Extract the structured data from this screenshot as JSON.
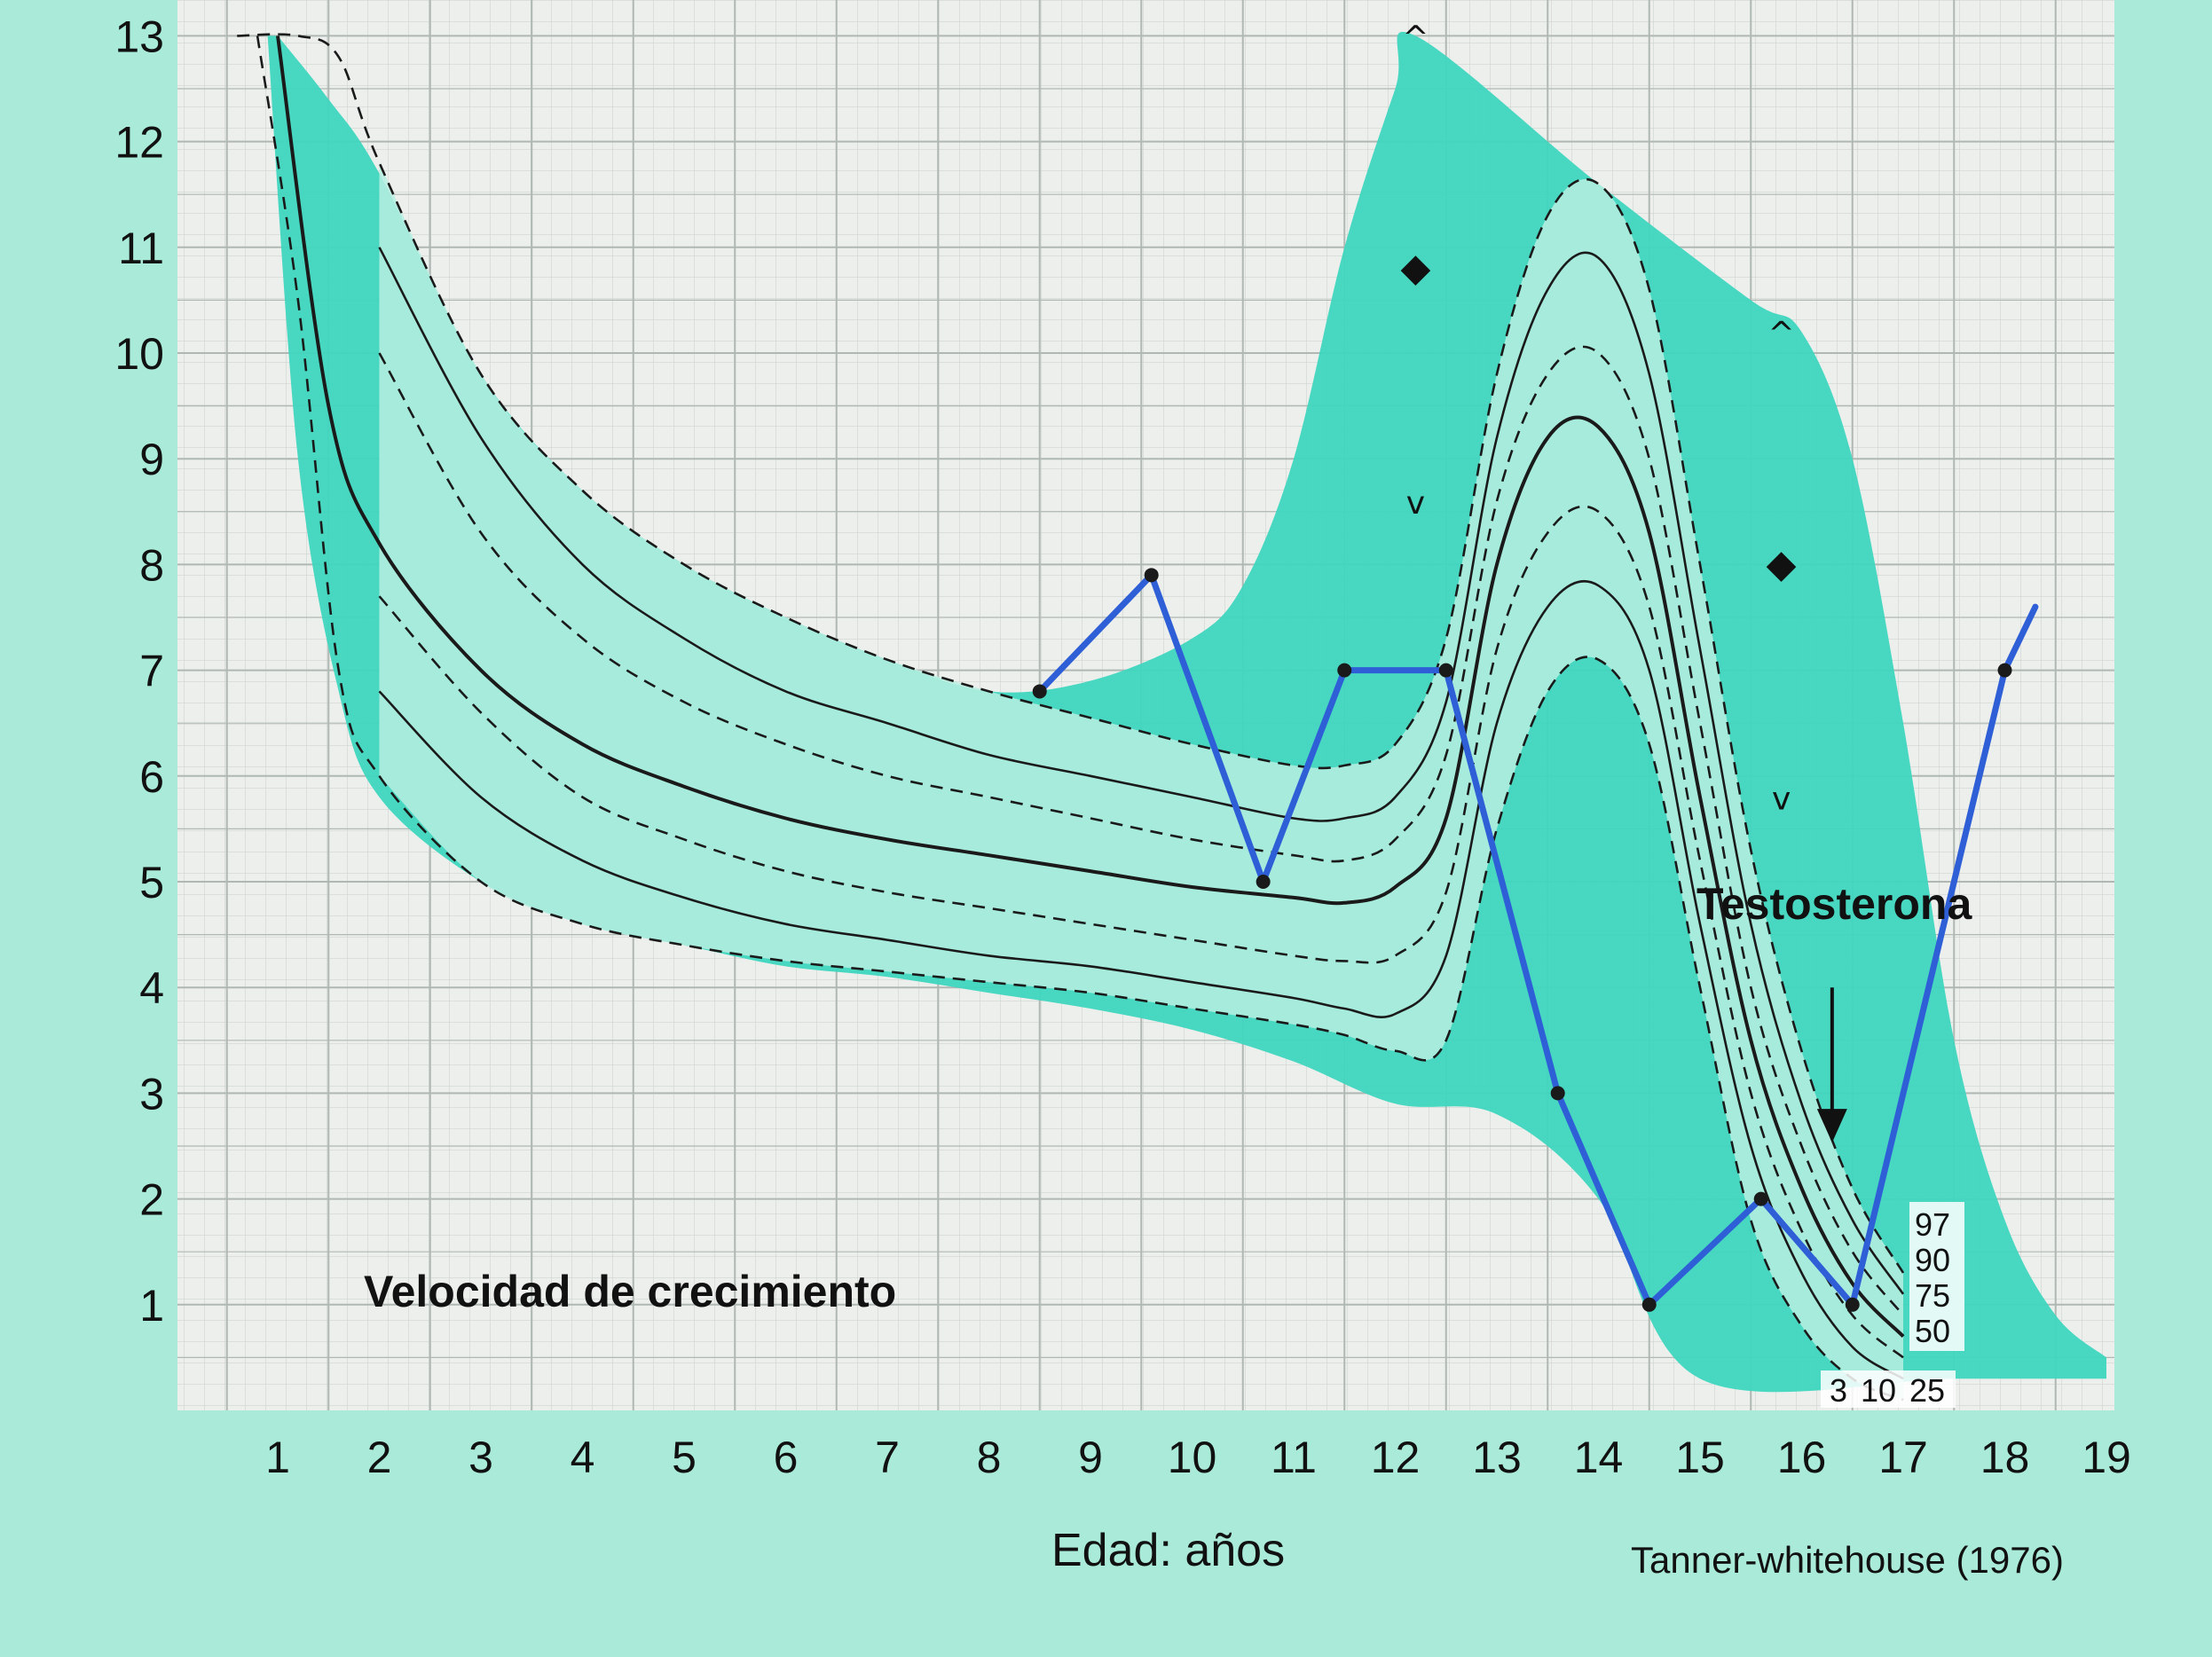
{
  "chart_data": {
    "type": "line",
    "title": "Velocidad de crecimiento",
    "xlabel": "Edad: años",
    "ylabel": "",
    "source": "Tanner-whitehouse (1976)",
    "annotation": "Testosterona",
    "xlim": [
      0.5,
      19
    ],
    "ylim": [
      0,
      13
    ],
    "x_ticks": [
      "1",
      "2",
      "3",
      "4",
      "5",
      "6",
      "7",
      "8",
      "9",
      "10",
      "11",
      "12",
      "13",
      "14",
      "15",
      "16",
      "17",
      "18",
      "19"
    ],
    "y_ticks": [
      "1",
      "2",
      "3",
      "4",
      "5",
      "6",
      "7",
      "8",
      "9",
      "10",
      "11",
      "12",
      "13"
    ],
    "percentile_labels_right": [
      "97",
      "90",
      "75",
      "50"
    ],
    "percentile_labels_bottom": [
      "3",
      "10",
      "25"
    ],
    "series": [
      {
        "type": "patient",
        "color": "#2f5fd6",
        "x": [
          8.5,
          9.6,
          10.7,
          11.5,
          12.5,
          13.6,
          14.5,
          15.6,
          16.5,
          18.0,
          18.3
        ],
        "y": [
          6.8,
          7.9,
          5.0,
          7.0,
          7.0,
          3.0,
          1.0,
          2.0,
          1.0,
          7.0,
          7.6
        ]
      }
    ],
    "percentile_curves": [
      {
        "style": "dashed",
        "x": [
          0.8,
          1.2,
          1.6,
          2,
          3,
          4,
          5,
          6,
          7,
          8,
          9,
          10,
          11,
          11.5,
          12,
          12.5,
          13,
          13.5,
          14,
          14.5,
          15,
          15.5,
          16,
          16.5,
          17
        ],
        "y": [
          13.0,
          10.5,
          7.0,
          6.0,
          5.0,
          4.6,
          4.4,
          4.25,
          4.15,
          4.05,
          3.95,
          3.8,
          3.65,
          3.55,
          3.4,
          3.5,
          5.5,
          6.8,
          7.1,
          6.3,
          4.0,
          1.8,
          0.8,
          0.3,
          0.1
        ]
      },
      {
        "style": "solid",
        "x": [
          2,
          3,
          4,
          5,
          6,
          7,
          8,
          9,
          10,
          11,
          11.5,
          12,
          12.5,
          13,
          13.5,
          14,
          14.5,
          15,
          15.5,
          16,
          16.5,
          17
        ],
        "y": [
          6.8,
          5.8,
          5.2,
          4.85,
          4.6,
          4.45,
          4.3,
          4.2,
          4.05,
          3.9,
          3.8,
          3.75,
          4.3,
          6.5,
          7.6,
          7.8,
          7.0,
          4.6,
          2.5,
          1.3,
          0.6,
          0.3
        ]
      },
      {
        "style": "dashed",
        "x": [
          2,
          3,
          4,
          5,
          6,
          7,
          8,
          9,
          10,
          11,
          11.5,
          12,
          12.5,
          13,
          13.5,
          14,
          14.5,
          15,
          15.5,
          16,
          16.5,
          17
        ],
        "y": [
          7.7,
          6.6,
          5.8,
          5.4,
          5.1,
          4.9,
          4.75,
          4.6,
          4.45,
          4.3,
          4.25,
          4.3,
          4.9,
          7.2,
          8.3,
          8.5,
          7.6,
          5.2,
          3.0,
          1.7,
          0.9,
          0.5
        ]
      },
      {
        "style": "solid",
        "x": [
          1.0,
          1.5,
          2,
          3,
          4,
          5,
          6,
          7,
          8,
          9,
          10,
          11,
          11.5,
          12,
          12.5,
          13,
          13.5,
          14,
          14.5,
          15,
          15.5,
          16,
          16.5,
          17
        ],
        "y": [
          13.0,
          9.5,
          8.2,
          7.0,
          6.3,
          5.9,
          5.6,
          5.4,
          5.25,
          5.1,
          4.95,
          4.85,
          4.8,
          4.95,
          5.6,
          8.0,
          9.2,
          9.3,
          8.3,
          5.8,
          3.5,
          2.1,
          1.2,
          0.7
        ]
      },
      {
        "style": "dashed",
        "x": [
          2,
          3,
          4,
          5,
          6,
          7,
          8,
          9,
          10,
          11,
          11.5,
          12,
          12.5,
          13,
          13.5,
          14,
          14.5,
          15,
          15.5,
          16,
          16.5,
          17
        ],
        "y": [
          10.0,
          8.3,
          7.3,
          6.7,
          6.3,
          6.0,
          5.8,
          5.6,
          5.4,
          5.25,
          5.2,
          5.4,
          6.2,
          8.6,
          9.8,
          10.0,
          9.0,
          6.5,
          4.0,
          2.5,
          1.5,
          0.9
        ]
      },
      {
        "style": "solid",
        "x": [
          2,
          3,
          4,
          5,
          6,
          7,
          8,
          9,
          10,
          11,
          11.5,
          12,
          12.5,
          13,
          13.5,
          14,
          14.5,
          15,
          15.5,
          16,
          16.5,
          17
        ],
        "y": [
          11.0,
          9.2,
          8.0,
          7.3,
          6.8,
          6.5,
          6.2,
          6.0,
          5.8,
          5.6,
          5.6,
          5.8,
          6.7,
          9.2,
          10.6,
          10.9,
          9.8,
          7.2,
          4.6,
          2.9,
          1.8,
          1.1
        ]
      },
      {
        "style": "dashed",
        "x": [
          0.6,
          1.2,
          1.6,
          2,
          3,
          4,
          5,
          6,
          7,
          8,
          9,
          10,
          11,
          11.5,
          12,
          12.5,
          13,
          13.5,
          14,
          14.5,
          15,
          15.5,
          16,
          16.5,
          17
        ],
        "y": [
          13.0,
          13.0,
          12.8,
          11.8,
          9.8,
          8.7,
          8.0,
          7.5,
          7.1,
          6.8,
          6.55,
          6.3,
          6.1,
          6.1,
          6.3,
          7.3,
          9.8,
          11.3,
          11.6,
          10.6,
          8.0,
          5.3,
          3.4,
          2.1,
          1.3
        ]
      }
    ],
    "band_outer": {
      "upper_x": [
        1.0,
        1.5,
        2,
        3,
        4,
        5,
        6,
        7,
        8,
        9,
        10,
        10.5,
        11,
        11.5,
        12,
        12.2,
        14,
        15.5,
        16,
        16.5,
        17,
        17.5,
        18,
        18.5,
        19
      ],
      "upper_y": [
        13.0,
        12.4,
        11.7,
        9.8,
        8.7,
        8.0,
        7.5,
        7.1,
        6.8,
        6.9,
        7.3,
        7.8,
        9.0,
        11.0,
        12.5,
        13.0,
        11.6,
        10.5,
        10.2,
        9.0,
        6.5,
        3.5,
        1.8,
        0.9,
        0.5
      ],
      "lower_x": [
        19,
        17.5,
        15,
        14,
        13,
        12,
        11,
        10,
        9,
        8,
        7,
        6,
        5,
        4,
        3,
        2,
        1.6,
        1.2,
        0.9
      ],
      "lower_y": [
        0.3,
        0.3,
        0.3,
        2.0,
        2.8,
        2.9,
        3.3,
        3.6,
        3.8,
        3.95,
        4.1,
        4.2,
        4.4,
        4.6,
        5.0,
        5.8,
        6.8,
        9.0,
        13.0
      ]
    },
    "markers": [
      {
        "x": 12.2,
        "y": 13.0,
        "symbol": "^"
      },
      {
        "x": 12.2,
        "y": 10.8,
        "symbol": "◆"
      },
      {
        "x": 12.2,
        "y": 8.6,
        "symbol": "v"
      },
      {
        "x": 15.8,
        "y": 10.2,
        "symbol": "^"
      },
      {
        "x": 15.8,
        "y": 8.0,
        "symbol": "◆"
      },
      {
        "x": 15.8,
        "y": 5.8,
        "symbol": "v"
      }
    ],
    "arrow": {
      "x": 16.3,
      "y_from": 4.0,
      "y_to": 2.6
    }
  }
}
